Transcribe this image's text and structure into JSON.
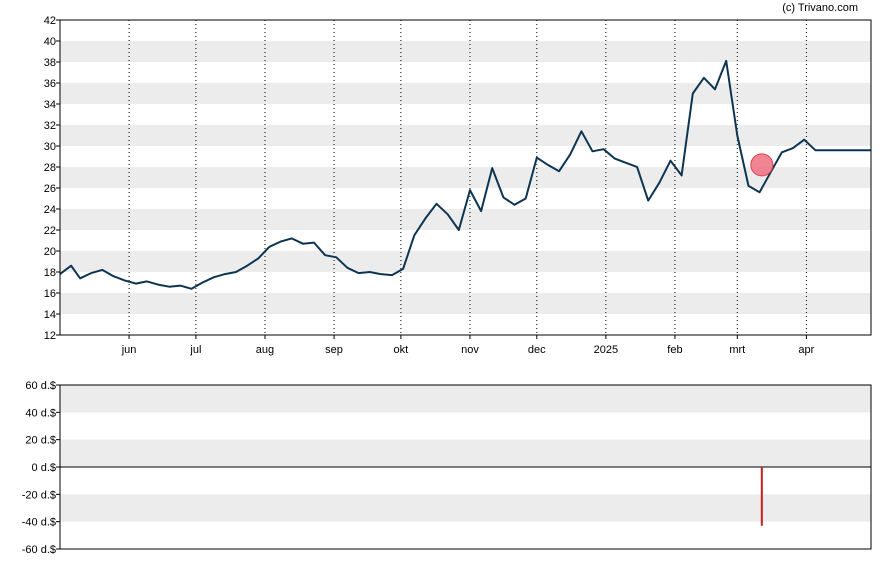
{
  "copyright": "(c) Trivano.com",
  "colors": {
    "band": "#ececec",
    "price_line": "#0d3552",
    "marker_fill": "#f07080",
    "marker_stroke": "#e04050",
    "volume_bar": "#cc1e1e",
    "axis": "#000000",
    "grid_dotted": "#000000"
  },
  "chart_data": [
    {
      "type": "line",
      "title": "",
      "xlabel": "",
      "ylabel": "",
      "ylim": [
        12,
        42
      ],
      "y_ticks": [
        12,
        14,
        16,
        18,
        20,
        22,
        24,
        26,
        28,
        30,
        32,
        34,
        36,
        38,
        40,
        42
      ],
      "x_tick_labels": [
        "jun",
        "jul",
        "aug",
        "sep",
        "okt",
        "nov",
        "dec",
        "2025",
        "feb",
        "mrt",
        "apr"
      ],
      "x_tick_dates": [
        "2024-06-01",
        "2024-07-01",
        "2024-08-01",
        "2024-09-01",
        "2024-10-01",
        "2024-11-01",
        "2024-12-01",
        "2025-01-01",
        "2025-02-01",
        "2025-03-01",
        "2025-04-01"
      ],
      "x_range": [
        "2024-05-01",
        "2025-04-30"
      ],
      "grid": "dotted vertical lines at month ticks, alternating shaded horizontal bands",
      "series": [
        {
          "x": [
            "2024-05-01",
            "2024-05-06",
            "2024-05-10",
            "2024-05-15",
            "2024-05-20",
            "2024-05-25",
            "2024-05-30",
            "2024-06-04",
            "2024-06-09",
            "2024-06-14",
            "2024-06-19",
            "2024-06-24",
            "2024-06-29",
            "2024-07-04",
            "2024-07-09",
            "2024-07-14",
            "2024-07-19",
            "2024-07-24",
            "2024-07-29",
            "2024-08-03",
            "2024-08-08",
            "2024-08-13",
            "2024-08-18",
            "2024-08-23",
            "2024-08-28",
            "2024-09-02",
            "2024-09-07",
            "2024-09-12",
            "2024-09-17",
            "2024-09-22",
            "2024-09-27",
            "2024-10-02",
            "2024-10-07",
            "2024-10-12",
            "2024-10-17",
            "2024-10-22",
            "2024-10-27",
            "2024-11-01",
            "2024-11-06",
            "2024-11-11",
            "2024-11-16",
            "2024-11-21",
            "2024-11-26",
            "2024-12-01",
            "2024-12-06",
            "2024-12-11",
            "2024-12-16",
            "2024-12-21",
            "2024-12-26",
            "2024-12-31",
            "2025-01-05",
            "2025-01-10",
            "2025-01-15",
            "2025-01-20",
            "2025-01-25",
            "2025-01-30",
            "2025-02-04",
            "2025-02-09",
            "2025-02-14",
            "2025-02-19",
            "2025-02-24",
            "2025-03-01",
            "2025-03-06",
            "2025-03-11",
            "2025-03-16",
            "2025-03-21",
            "2025-03-26",
            "2025-03-31",
            "2025-04-05",
            "2025-04-10",
            "2025-04-15",
            "2025-04-20",
            "2025-04-25",
            "2025-04-30"
          ],
          "values": [
            17.8,
            18.6,
            17.4,
            17.9,
            18.2,
            17.6,
            17.2,
            16.9,
            17.1,
            16.8,
            16.6,
            16.7,
            16.4,
            17.0,
            17.5,
            17.8,
            18.0,
            18.6,
            19.3,
            20.4,
            20.9,
            21.2,
            20.7,
            20.8,
            19.6,
            19.4,
            18.4,
            17.9,
            18.0,
            17.8,
            17.7,
            18.3,
            21.5,
            23.1,
            24.5,
            23.5,
            22.0,
            25.8,
            23.8,
            27.9,
            25.1,
            24.4,
            25.0,
            28.9,
            28.2,
            27.6,
            29.2,
            31.4,
            29.5,
            29.7,
            28.8,
            28.4,
            28.0,
            24.8,
            26.5,
            28.6,
            27.2,
            35.0,
            36.5,
            35.4,
            38.1,
            31.0,
            26.2,
            25.6,
            27.5,
            29.4,
            29.8,
            30.6,
            29.6,
            29.6,
            29.6,
            29.6,
            29.6,
            29.6
          ]
        }
      ],
      "markers": [
        {
          "x": "2025-03-12",
          "y": 28.2
        }
      ]
    },
    {
      "type": "bar",
      "title": "",
      "xlabel": "",
      "ylabel": "",
      "ylim": [
        -60,
        60
      ],
      "y_tick_labels": [
        "60 d.$",
        "40 d.$",
        "20 d.$",
        "0 d.$",
        "-20 d.$",
        "-40 d.$",
        "-60 d.$"
      ],
      "y_tick_values": [
        60,
        40,
        20,
        0,
        -20,
        -40,
        -60
      ],
      "grid": "alternating shaded horizontal bands, solid zero line",
      "values": [
        {
          "x": "2025-03-12",
          "value": -43
        }
      ]
    }
  ]
}
